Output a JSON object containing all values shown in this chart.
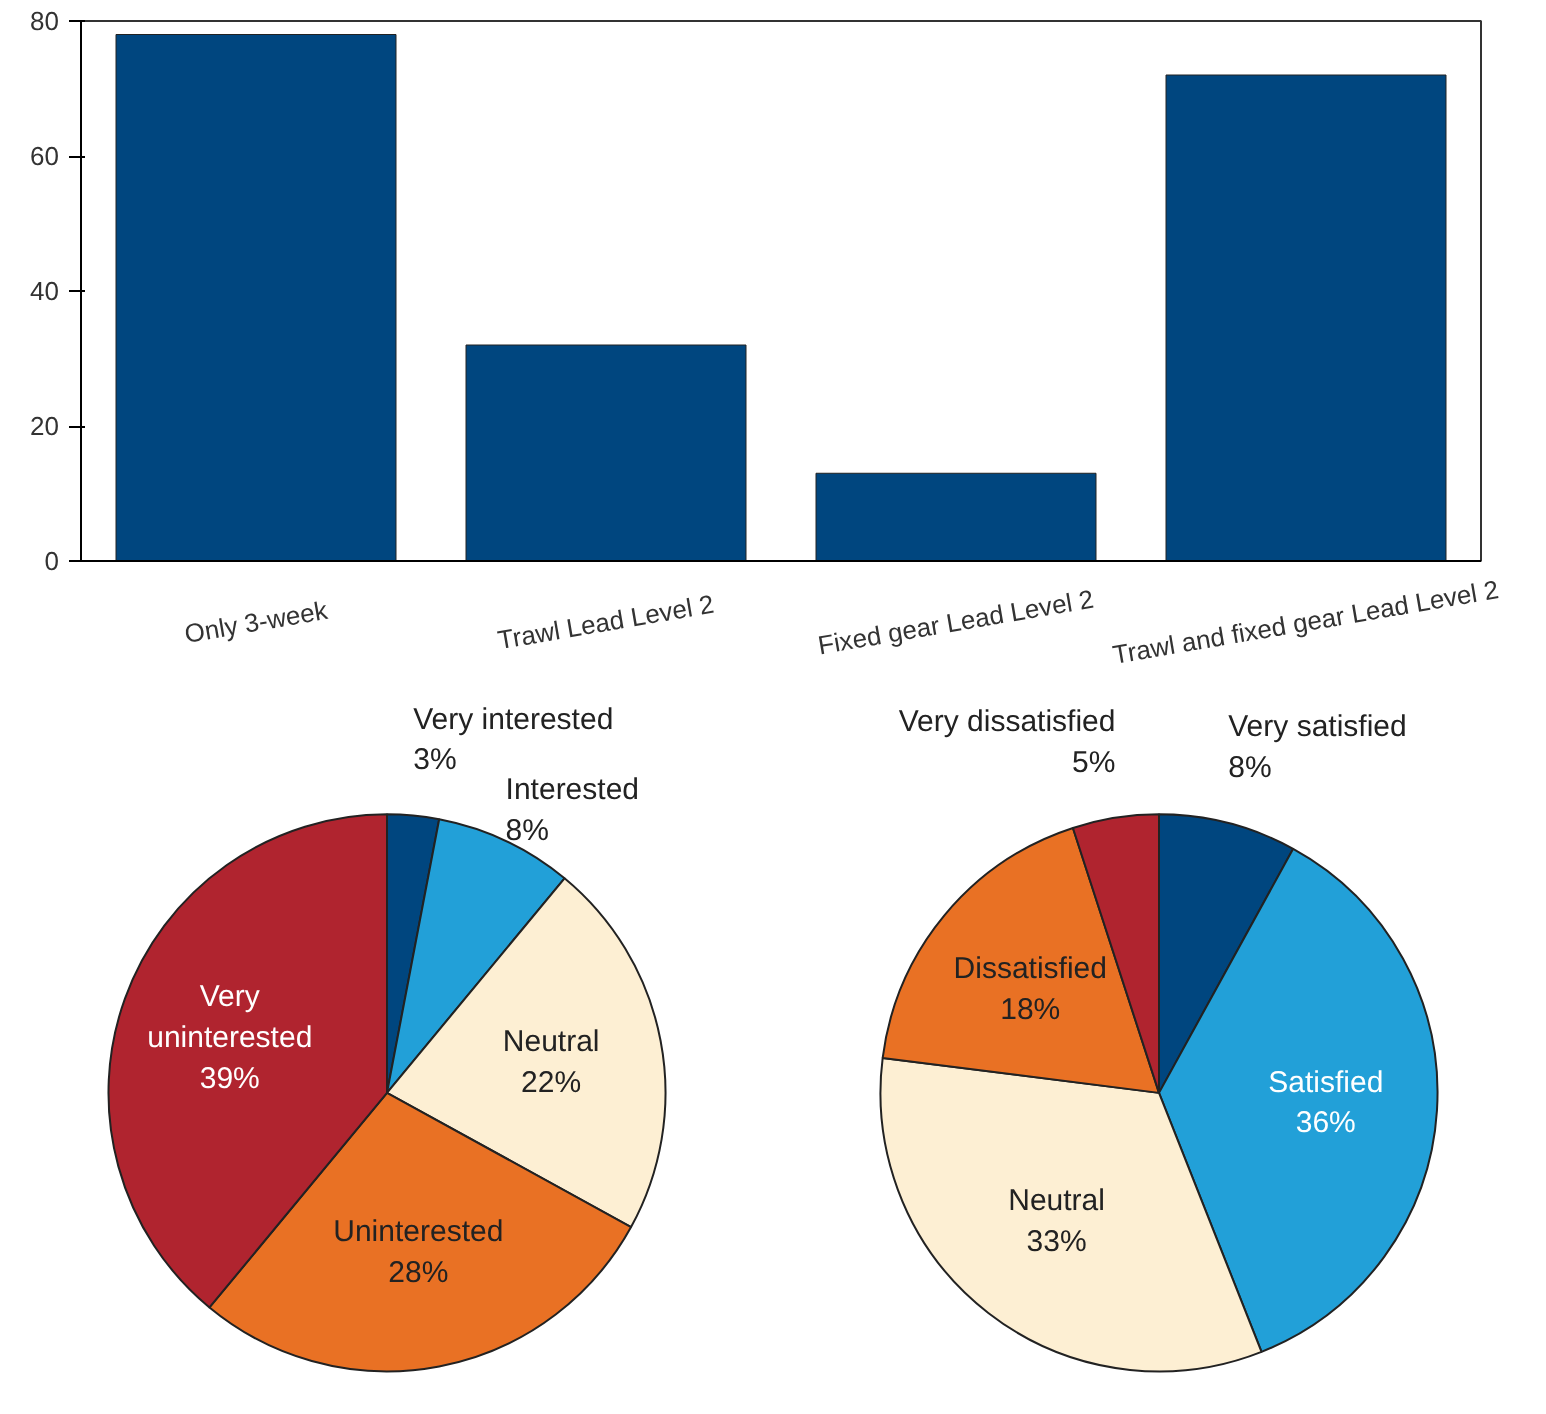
{
  "chart_data": [
    {
      "type": "bar",
      "categories": [
        "Only 3-week",
        "Trawl Lead Level 2",
        "Fixed gear Lead Level 2",
        "Trawl and fixed gear Lead Level 2"
      ],
      "values": [
        78,
        32,
        13,
        72
      ],
      "color": "#00467f",
      "ylim": [
        0,
        80
      ],
      "yticks": [
        0,
        20,
        40,
        60,
        80
      ],
      "grid": false
    },
    {
      "type": "pie",
      "categories": [
        "Very interested",
        "Interested",
        "Neutral",
        "Uninterested",
        "Very uninterested"
      ],
      "values": [
        3,
        8,
        22,
        28,
        39
      ],
      "value_labels": [
        "3%",
        "8%",
        "22%",
        "28%",
        "39%"
      ],
      "colors": [
        "#00467f",
        "#22a0d8",
        "#fdefd3",
        "#e97124",
        "#b0242f"
      ]
    },
    {
      "type": "pie",
      "categories": [
        "Very satisfied",
        "Satisfied",
        "Neutral",
        "Dissatisfied",
        "Very dissatisfied"
      ],
      "values": [
        8,
        36,
        33,
        18,
        5
      ],
      "value_labels": [
        "8%",
        "36%",
        "33%",
        "18%",
        "5%"
      ],
      "colors": [
        "#00467f",
        "#22a0d8",
        "#fdefd3",
        "#e97124",
        "#b0242f"
      ]
    }
  ]
}
